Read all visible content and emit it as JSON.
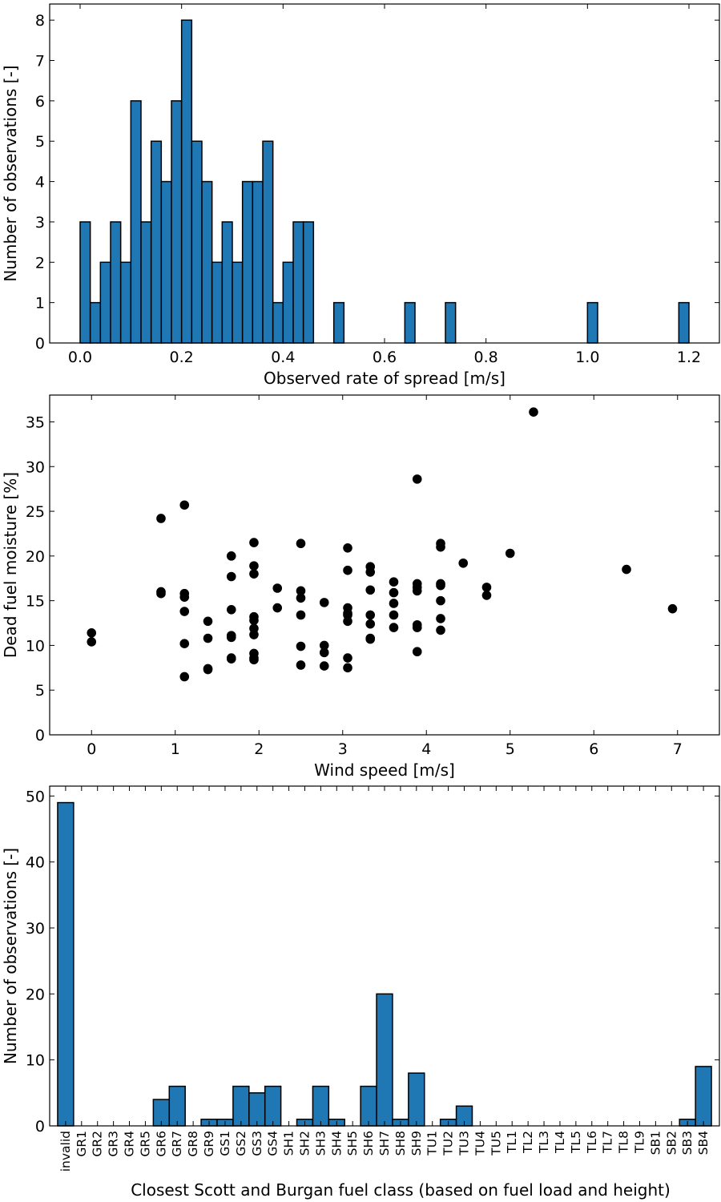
{
  "colors": {
    "bar_fill": "#1f77b4",
    "bar_edge": "#000000",
    "marker": "#000000",
    "axes": "#000000"
  },
  "chart_data": [
    {
      "type": "bar",
      "subtype": "histogram",
      "xlabel": "Observed rate of spread [m/s]",
      "ylabel": "Number of observations [-]",
      "xlim": [
        -0.06,
        1.26
      ],
      "ylim": [
        0,
        8.4
      ],
      "xticks": [
        0.0,
        0.2,
        0.4,
        0.6,
        0.8,
        1.0,
        1.2
      ],
      "xtick_labels": [
        "0.0",
        "0.2",
        "0.4",
        "0.6",
        "0.8",
        "1.0",
        "1.2"
      ],
      "yticks": [
        0,
        1,
        2,
        3,
        4,
        5,
        6,
        7,
        8
      ],
      "ytick_labels": [
        "0",
        "1",
        "2",
        "3",
        "4",
        "5",
        "6",
        "7",
        "8"
      ],
      "bin_width": 0.02,
      "bins": [
        0.0,
        0.02,
        0.04,
        0.06,
        0.08,
        0.1,
        0.12,
        0.14,
        0.16,
        0.18,
        0.2,
        0.22,
        0.24,
        0.26,
        0.28,
        0.3,
        0.32,
        0.34,
        0.36,
        0.38,
        0.4,
        0.42,
        0.44,
        0.5,
        0.64,
        0.72,
        1.0,
        1.18
      ],
      "values": [
        3,
        1,
        2,
        3,
        2,
        6,
        3,
        5,
        4,
        6,
        8,
        5,
        4,
        2,
        3,
        2,
        4,
        4,
        5,
        1,
        2,
        3,
        3,
        1,
        1,
        1,
        1,
        1
      ],
      "grid": false
    },
    {
      "type": "scatter",
      "xlabel": "Wind speed [m/s]",
      "ylabel": "Dead fuel moisture [%]",
      "xlim": [
        -0.5,
        7.5
      ],
      "ylim": [
        0,
        38
      ],
      "xticks": [
        0,
        1,
        2,
        3,
        4,
        5,
        6,
        7
      ],
      "xtick_labels": [
        "0",
        "1",
        "2",
        "3",
        "4",
        "5",
        "6",
        "7"
      ],
      "yticks": [
        0,
        5,
        10,
        15,
        20,
        25,
        30,
        35
      ],
      "ytick_labels": [
        "0",
        "5",
        "10",
        "15",
        "20",
        "25",
        "30",
        "35"
      ],
      "x": [
        0,
        0,
        0.83,
        0.83,
        0.83,
        1.11,
        1.11,
        1.11,
        1.11,
        1.11,
        1.11,
        1.39,
        1.39,
        1.39,
        1.39,
        1.67,
        1.67,
        1.67,
        1.67,
        1.67,
        1.67,
        1.67,
        1.94,
        1.94,
        1.94,
        1.94,
        1.94,
        1.94,
        1.94,
        1.94,
        1.94,
        1.94,
        2.22,
        2.22,
        2.5,
        2.5,
        2.5,
        2.5,
        2.5,
        2.5,
        2.78,
        2.78,
        2.78,
        2.78,
        3.06,
        3.06,
        3.06,
        3.06,
        3.06,
        3.06,
        3.06,
        3.06,
        3.33,
        3.33,
        3.33,
        3.33,
        3.33,
        3.33,
        3.33,
        3.61,
        3.61,
        3.61,
        3.61,
        3.61,
        3.89,
        3.89,
        3.89,
        3.89,
        3.89,
        3.89,
        3.89,
        4.17,
        4.17,
        4.17,
        4.17,
        4.17,
        4.17,
        4.17,
        4.44,
        4.72,
        4.72,
        5.0,
        5.28,
        6.39,
        6.94
      ],
      "y": [
        11.4,
        10.4,
        24.2,
        16.0,
        15.8,
        25.7,
        15.8,
        15.4,
        13.8,
        10.2,
        6.5,
        12.7,
        10.8,
        7.4,
        7.3,
        20.0,
        17.7,
        14.0,
        11.1,
        10.9,
        8.6,
        8.5,
        21.5,
        18.9,
        18.0,
        13.2,
        12.8,
        11.9,
        11.2,
        9.1,
        8.6,
        8.4,
        16.4,
        14.2,
        21.4,
        16.1,
        15.3,
        13.4,
        9.9,
        7.8,
        14.8,
        10.0,
        9.2,
        7.7,
        20.9,
        18.4,
        14.2,
        13.6,
        13.4,
        12.7,
        8.6,
        7.5,
        18.8,
        18.2,
        16.2,
        13.4,
        12.4,
        10.8,
        10.7,
        17.1,
        15.9,
        14.7,
        13.4,
        12.0,
        28.6,
        16.9,
        16.5,
        16.1,
        12.3,
        12.0,
        9.3,
        21.4,
        21.0,
        16.9,
        16.7,
        15.0,
        13.0,
        11.7,
        19.2,
        16.5,
        15.6,
        20.3,
        36.1,
        18.5,
        14.1
      ],
      "grid": false
    },
    {
      "type": "bar",
      "xlabel": "Closest Scott and Burgan fuel class (based on fuel load and height)",
      "ylabel": "Number of observations [-]",
      "ylim": [
        0,
        51.5
      ],
      "yticks": [
        0,
        10,
        20,
        30,
        40,
        50
      ],
      "ytick_labels": [
        "0",
        "10",
        "20",
        "30",
        "40",
        "50"
      ],
      "categories": [
        "invalid",
        "GR1",
        "GR2",
        "GR3",
        "GR4",
        "GR5",
        "GR6",
        "GR7",
        "GR8",
        "GR9",
        "GS1",
        "GS2",
        "GS3",
        "GS4",
        "SH1",
        "SH2",
        "SH3",
        "SH4",
        "SH5",
        "SH6",
        "SH7",
        "SH8",
        "SH9",
        "TU1",
        "TU2",
        "TU3",
        "TU4",
        "TU5",
        "TL1",
        "TL2",
        "TL3",
        "TL4",
        "TL5",
        "TL6",
        "TL7",
        "TL8",
        "TL9",
        "SB1",
        "SB2",
        "SB3",
        "SB4"
      ],
      "values": [
        49,
        0,
        0,
        0,
        0,
        0,
        4,
        6,
        0,
        1,
        1,
        6,
        5,
        6,
        0,
        1,
        6,
        1,
        0,
        6,
        20,
        1,
        8,
        0,
        1,
        3,
        0,
        0,
        0,
        0,
        0,
        0,
        0,
        0,
        0,
        0,
        0,
        0,
        0,
        1,
        9
      ],
      "grid": false
    }
  ]
}
